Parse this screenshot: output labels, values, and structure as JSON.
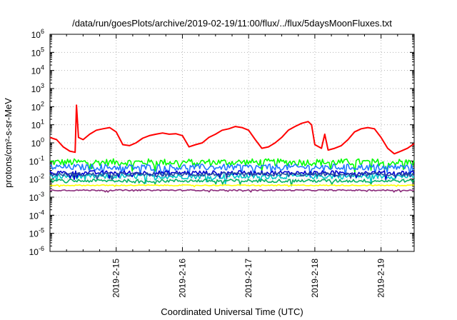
{
  "chart_data": {
    "type": "line",
    "title": "/data/run/goesPlots/archive/2019-02-19/11:00/flux/../flux/5daysMoonFluxes.txt",
    "xlabel": "Coordinated Universal Time (UTC)",
    "ylabel": "protons/cm²-s-sr-MeV",
    "yscale": "log",
    "ylim_exponents": [
      -6,
      6
    ],
    "y_tick_base": "10",
    "y_tick_exponents": [
      "-6",
      "-5",
      "-4",
      "-3",
      "-2",
      "-1",
      "0",
      "1",
      "2",
      "3",
      "4",
      "5",
      "6"
    ],
    "xlim_days": [
      14.0,
      19.5
    ],
    "x_ticks": [
      {
        "day": 15,
        "label": "2019-2-15"
      },
      {
        "day": 16,
        "label": "2019-2-16"
      },
      {
        "day": 17,
        "label": "2019-2-17"
      },
      {
        "day": 18,
        "label": "2019-2-18"
      },
      {
        "day": 19,
        "label": "2019-2-19"
      }
    ],
    "grid": true,
    "legend": "none",
    "series": [
      {
        "color": "#ff0000",
        "x": [
          14.0,
          14.1,
          14.2,
          14.3,
          14.38,
          14.4,
          14.43,
          14.5,
          14.6,
          14.7,
          14.8,
          14.9,
          15.0,
          15.1,
          15.2,
          15.3,
          15.4,
          15.5,
          15.6,
          15.7,
          15.8,
          15.9,
          16.0,
          16.1,
          16.2,
          16.3,
          16.4,
          16.5,
          16.6,
          16.7,
          16.8,
          16.9,
          17.0,
          17.1,
          17.2,
          17.3,
          17.4,
          17.5,
          17.6,
          17.7,
          17.8,
          17.9,
          17.95,
          18.0,
          18.1,
          18.15,
          18.2,
          18.3,
          18.4,
          18.5,
          18.6,
          18.7,
          18.8,
          18.9,
          19.0,
          19.1,
          19.2,
          19.3,
          19.4,
          19.5
        ],
        "y": [
          2.0,
          1.5,
          0.6,
          0.35,
          0.3,
          120,
          2.0,
          1.5,
          3.0,
          5.0,
          6.0,
          7.0,
          4.0,
          0.8,
          0.7,
          1.0,
          1.8,
          2.5,
          3.0,
          3.5,
          3.0,
          3.2,
          2.5,
          0.6,
          0.8,
          1.0,
          2.0,
          3.0,
          5.0,
          6.0,
          8.0,
          7.0,
          5.0,
          1.5,
          0.5,
          0.6,
          1.0,
          2.0,
          5.0,
          8.0,
          12.0,
          15.0,
          10.0,
          0.8,
          0.5,
          3.0,
          0.4,
          0.5,
          0.7,
          1.5,
          4.0,
          6.0,
          7.0,
          6.0,
          2.0,
          0.5,
          0.25,
          0.35,
          0.5,
          0.9
        ]
      },
      {
        "color": "#00ff00",
        "x": [
          14.0,
          19.5
        ],
        "y": [
          0.085,
          0.085
        ],
        "noise": 0.55
      },
      {
        "color": "#00c8c8",
        "x": [
          14.0,
          19.5
        ],
        "y": [
          0.014,
          0.014
        ],
        "noise": 0.4
      },
      {
        "color": "#1e78ff",
        "x": [
          14.0,
          19.5
        ],
        "y": [
          0.045,
          0.045
        ],
        "noise": 0.5
      },
      {
        "color": "#0000d0",
        "x": [
          14.0,
          19.5
        ],
        "y": [
          0.022,
          0.022
        ],
        "noise": 0.35
      },
      {
        "color": "#2a50a0",
        "x": [
          14.0,
          19.5
        ],
        "y": [
          0.018,
          0.018
        ],
        "noise": 0.3
      },
      {
        "color": "#00b060",
        "x": [
          14.0,
          19.5
        ],
        "y": [
          0.008,
          0.008
        ],
        "noise": 0.25
      },
      {
        "color": "#ffff00",
        "x": [
          14.0,
          19.5
        ],
        "y": [
          0.0045,
          0.0045
        ],
        "noise": 0.08
      },
      {
        "color": "#8a2a7a",
        "x": [
          14.0,
          19.5
        ],
        "y": [
          0.0024,
          0.0024
        ],
        "noise": 0.1
      }
    ]
  }
}
